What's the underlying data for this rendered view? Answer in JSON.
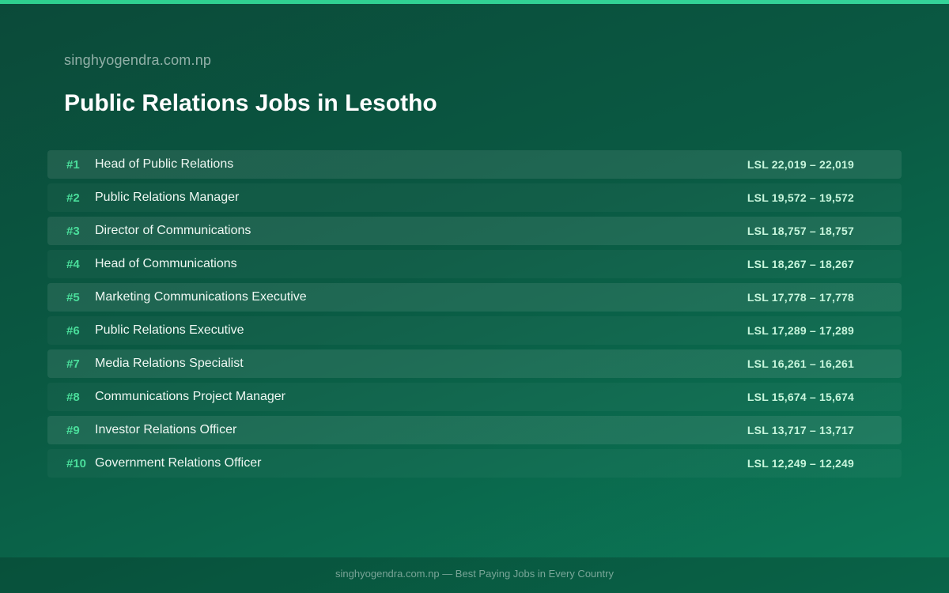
{
  "header": {
    "site_name": "singhyogendra.com.np",
    "title": "Public Relations Jobs in Lesotho"
  },
  "jobs": [
    {
      "rank": "#1",
      "title": "Head of Public Relations",
      "salary": "LSL 22,019 – 22,019"
    },
    {
      "rank": "#2",
      "title": "Public Relations Manager",
      "salary": "LSL 19,572 – 19,572"
    },
    {
      "rank": "#3",
      "title": "Director of Communications",
      "salary": "LSL 18,757 – 18,757"
    },
    {
      "rank": "#4",
      "title": "Head of Communications",
      "salary": "LSL 18,267 – 18,267"
    },
    {
      "rank": "#5",
      "title": "Marketing Communications Executive",
      "salary": "LSL 17,778 – 17,778"
    },
    {
      "rank": "#6",
      "title": "Public Relations Executive",
      "salary": "LSL 17,289 – 17,289"
    },
    {
      "rank": "#7",
      "title": "Media Relations Specialist",
      "salary": "LSL 16,261 – 16,261"
    },
    {
      "rank": "#8",
      "title": "Communications Project Manager",
      "salary": "LSL 15,674 – 15,674"
    },
    {
      "rank": "#9",
      "title": "Investor Relations Officer",
      "salary": "LSL 13,717 – 13,717"
    },
    {
      "rank": "#10",
      "title": "Government Relations Officer",
      "salary": "LSL 12,249 – 12,249"
    }
  ],
  "footer": {
    "text": "singhyogendra.com.np — Best Paying Jobs in Every Country"
  },
  "colors": {
    "background_start": "#0b4a39",
    "background_end": "#0b7a58",
    "accent": "#2ecf8e",
    "rank_color": "#4ade9b",
    "salary_color": "#c7f5dc"
  }
}
